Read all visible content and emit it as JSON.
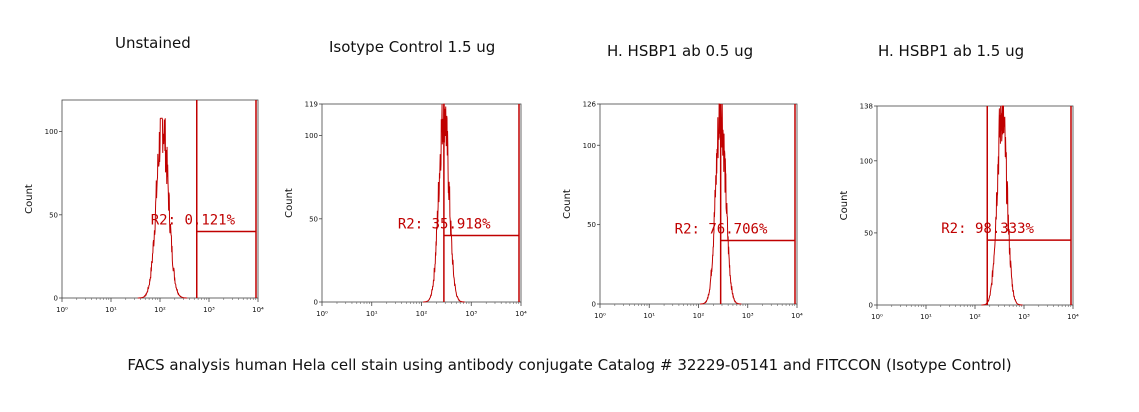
{
  "chart_data": [
    {
      "type": "histogram",
      "title": "Unstained",
      "ylabel": "Count",
      "x_scale": "log",
      "xlim": [
        1,
        10000
      ],
      "ylim": [
        0,
        119
      ],
      "y_ticks": [
        "0",
        "50",
        "100"
      ],
      "x_ticks": [
        "10⁰",
        "10¹",
        "10²",
        "10³",
        "10⁴"
      ],
      "peak": {
        "center_decade": 2.05,
        "height": 108,
        "width": 0.12
      },
      "gate": {
        "label": "R2: 0.121%",
        "x_start_decade": 2.75,
        "x_end_decade": 4.0,
        "level": 40
      },
      "color": "#c00000"
    },
    {
      "type": "histogram",
      "title": "Isotype Control 1.5 ug",
      "ylabel": "Count",
      "x_scale": "log",
      "xlim": [
        1,
        10000
      ],
      "ylim": [
        0,
        119
      ],
      "y_ticks": [
        "0",
        "50",
        "100",
        "119"
      ],
      "x_ticks": [
        "10⁰",
        "10¹",
        "10²",
        "10³",
        "10⁴"
      ],
      "peak": {
        "center_decade": 2.45,
        "height": 119,
        "width": 0.1
      },
      "gate": {
        "label": "R2: 35.918%",
        "x_start_decade": 2.45,
        "x_end_decade": 4.0,
        "level": 40
      },
      "color": "#c00000"
    },
    {
      "type": "histogram",
      "title": "H. HSBP1 ab 0.5 ug",
      "ylabel": "Count",
      "x_scale": "log",
      "xlim": [
        1,
        10000
      ],
      "ylim": [
        0,
        126
      ],
      "y_ticks": [
        "0",
        "50",
        "100",
        "126"
      ],
      "x_ticks": [
        "10⁰",
        "10¹",
        "10²",
        "10³",
        "10⁴"
      ],
      "peak": {
        "center_decade": 2.45,
        "height": 126,
        "width": 0.1
      },
      "gate": {
        "label": "R2: 76.706%",
        "x_start_decade": 2.45,
        "x_end_decade": 4.0,
        "level": 40
      },
      "color": "#c00000"
    },
    {
      "type": "histogram",
      "title": "H. HSBP1 ab 1.5 ug",
      "ylabel": "Count",
      "x_scale": "log",
      "xlim": [
        1,
        10000
      ],
      "ylim": [
        0,
        138
      ],
      "y_ticks": [
        "0",
        "50",
        "100",
        "138"
      ],
      "x_ticks": [
        "10⁰",
        "10¹",
        "10²",
        "10³",
        "10⁴"
      ],
      "peak": {
        "center_decade": 2.55,
        "height": 138,
        "width": 0.1
      },
      "gate": {
        "label": "R2: 98.333%",
        "x_start_decade": 2.25,
        "x_end_decade": 4.0,
        "level": 45
      },
      "color": "#c00000"
    }
  ],
  "caption": "FACS analysis human Hela cell stain using antibody conjugate Catalog # 32229-05141 and FITCCON (Isotype Control)"
}
